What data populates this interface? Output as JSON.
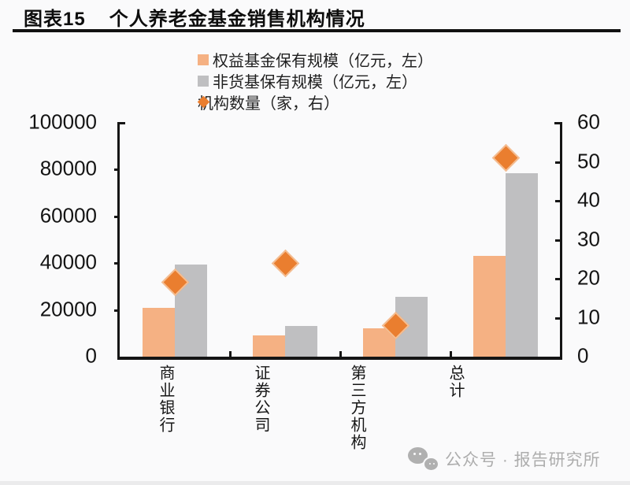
{
  "header": {
    "tag": "图表15",
    "title": "个人养老金基金销售机构情况"
  },
  "chart_data": {
    "type": "bar",
    "categories": [
      "商业银行",
      "证券公司",
      "第三方机构",
      "总计"
    ],
    "series": [
      {
        "name": "权益基金保有规模（亿元，左）",
        "kind": "bar",
        "axis": "left",
        "color": "#F5B183",
        "values": [
          21000,
          9000,
          12000,
          43000
        ]
      },
      {
        "name": "非货基保有规模（亿元，左）",
        "kind": "bar",
        "axis": "left",
        "color": "#BFBFC1",
        "values": [
          39500,
          13000,
          25500,
          78500
        ]
      },
      {
        "name": "机构数量（家，右）",
        "kind": "scatter",
        "marker": "diamond",
        "axis": "right",
        "color": "#EA7E2F",
        "marker_edge_color": "#F4BE93",
        "values": [
          19,
          24,
          8,
          51
        ]
      }
    ],
    "left_axis": {
      "lim": [
        0,
        100000
      ],
      "ticks": [
        0,
        20000,
        40000,
        60000,
        80000,
        100000
      ]
    },
    "right_axis": {
      "lim": [
        0,
        60
      ],
      "ticks": [
        0,
        10,
        20,
        30,
        40,
        50,
        60
      ]
    },
    "grid": false,
    "legend_position": "top",
    "axis_color": "#151515"
  },
  "watermark": {
    "icon": "wechat-icon",
    "text": "公众号 · 报告研究所"
  }
}
